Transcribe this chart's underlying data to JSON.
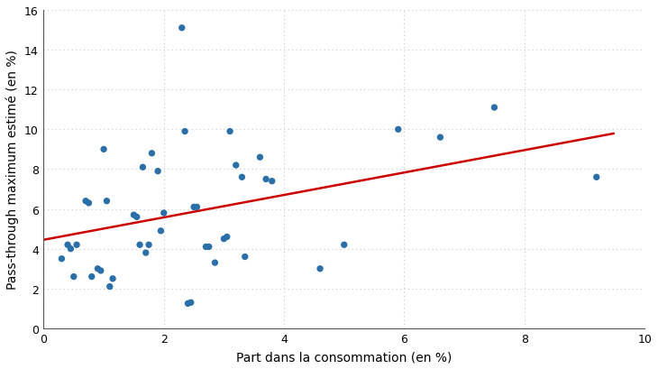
{
  "points": [
    [
      0.3,
      3.5
    ],
    [
      0.4,
      4.2
    ],
    [
      0.45,
      4.0
    ],
    [
      0.5,
      2.6
    ],
    [
      0.55,
      4.2
    ],
    [
      0.7,
      6.4
    ],
    [
      0.75,
      6.3
    ],
    [
      0.8,
      2.6
    ],
    [
      0.9,
      3.0
    ],
    [
      0.95,
      2.9
    ],
    [
      1.0,
      9.0
    ],
    [
      1.05,
      6.4
    ],
    [
      1.1,
      2.1
    ],
    [
      1.15,
      2.5
    ],
    [
      1.5,
      5.7
    ],
    [
      1.55,
      5.6
    ],
    [
      1.6,
      4.2
    ],
    [
      1.65,
      8.1
    ],
    [
      1.7,
      3.8
    ],
    [
      1.75,
      4.2
    ],
    [
      1.8,
      8.8
    ],
    [
      1.9,
      7.9
    ],
    [
      1.95,
      4.9
    ],
    [
      2.0,
      5.8
    ],
    [
      2.3,
      15.1
    ],
    [
      2.35,
      9.9
    ],
    [
      2.4,
      1.25
    ],
    [
      2.45,
      1.3
    ],
    [
      2.5,
      6.1
    ],
    [
      2.55,
      6.1
    ],
    [
      2.7,
      4.1
    ],
    [
      2.75,
      4.1
    ],
    [
      2.85,
      3.3
    ],
    [
      3.0,
      4.5
    ],
    [
      3.05,
      4.6
    ],
    [
      3.1,
      9.9
    ],
    [
      3.2,
      8.2
    ],
    [
      3.3,
      7.6
    ],
    [
      3.35,
      3.6
    ],
    [
      3.6,
      8.6
    ],
    [
      3.7,
      7.5
    ],
    [
      3.8,
      7.4
    ],
    [
      4.6,
      3.0
    ],
    [
      5.0,
      4.2
    ],
    [
      5.9,
      10.0
    ],
    [
      6.6,
      9.6
    ],
    [
      7.5,
      11.1
    ],
    [
      9.2,
      7.6
    ]
  ],
  "trendline": {
    "x_start": 0.0,
    "x_end": 9.5,
    "y_start": 4.45,
    "y_end": 9.8
  },
  "xlim": [
    0,
    10
  ],
  "ylim": [
    0,
    16
  ],
  "xticks": [
    0,
    2,
    4,
    6,
    8,
    10
  ],
  "yticks": [
    0,
    2,
    4,
    6,
    8,
    10,
    12,
    14,
    16
  ],
  "xlabel": "Part dans la consommation (en %)",
  "ylabel": "Pass-through maximum estimé (en %)",
  "scatter_color": "#2a6fa8",
  "line_color": "#CC0000",
  "grid_color": "#c8c8c8",
  "bg_color": "#FFFFFF",
  "marker_size": 28,
  "line_width": 1.8,
  "tick_fontsize": 9,
  "label_fontsize": 10
}
